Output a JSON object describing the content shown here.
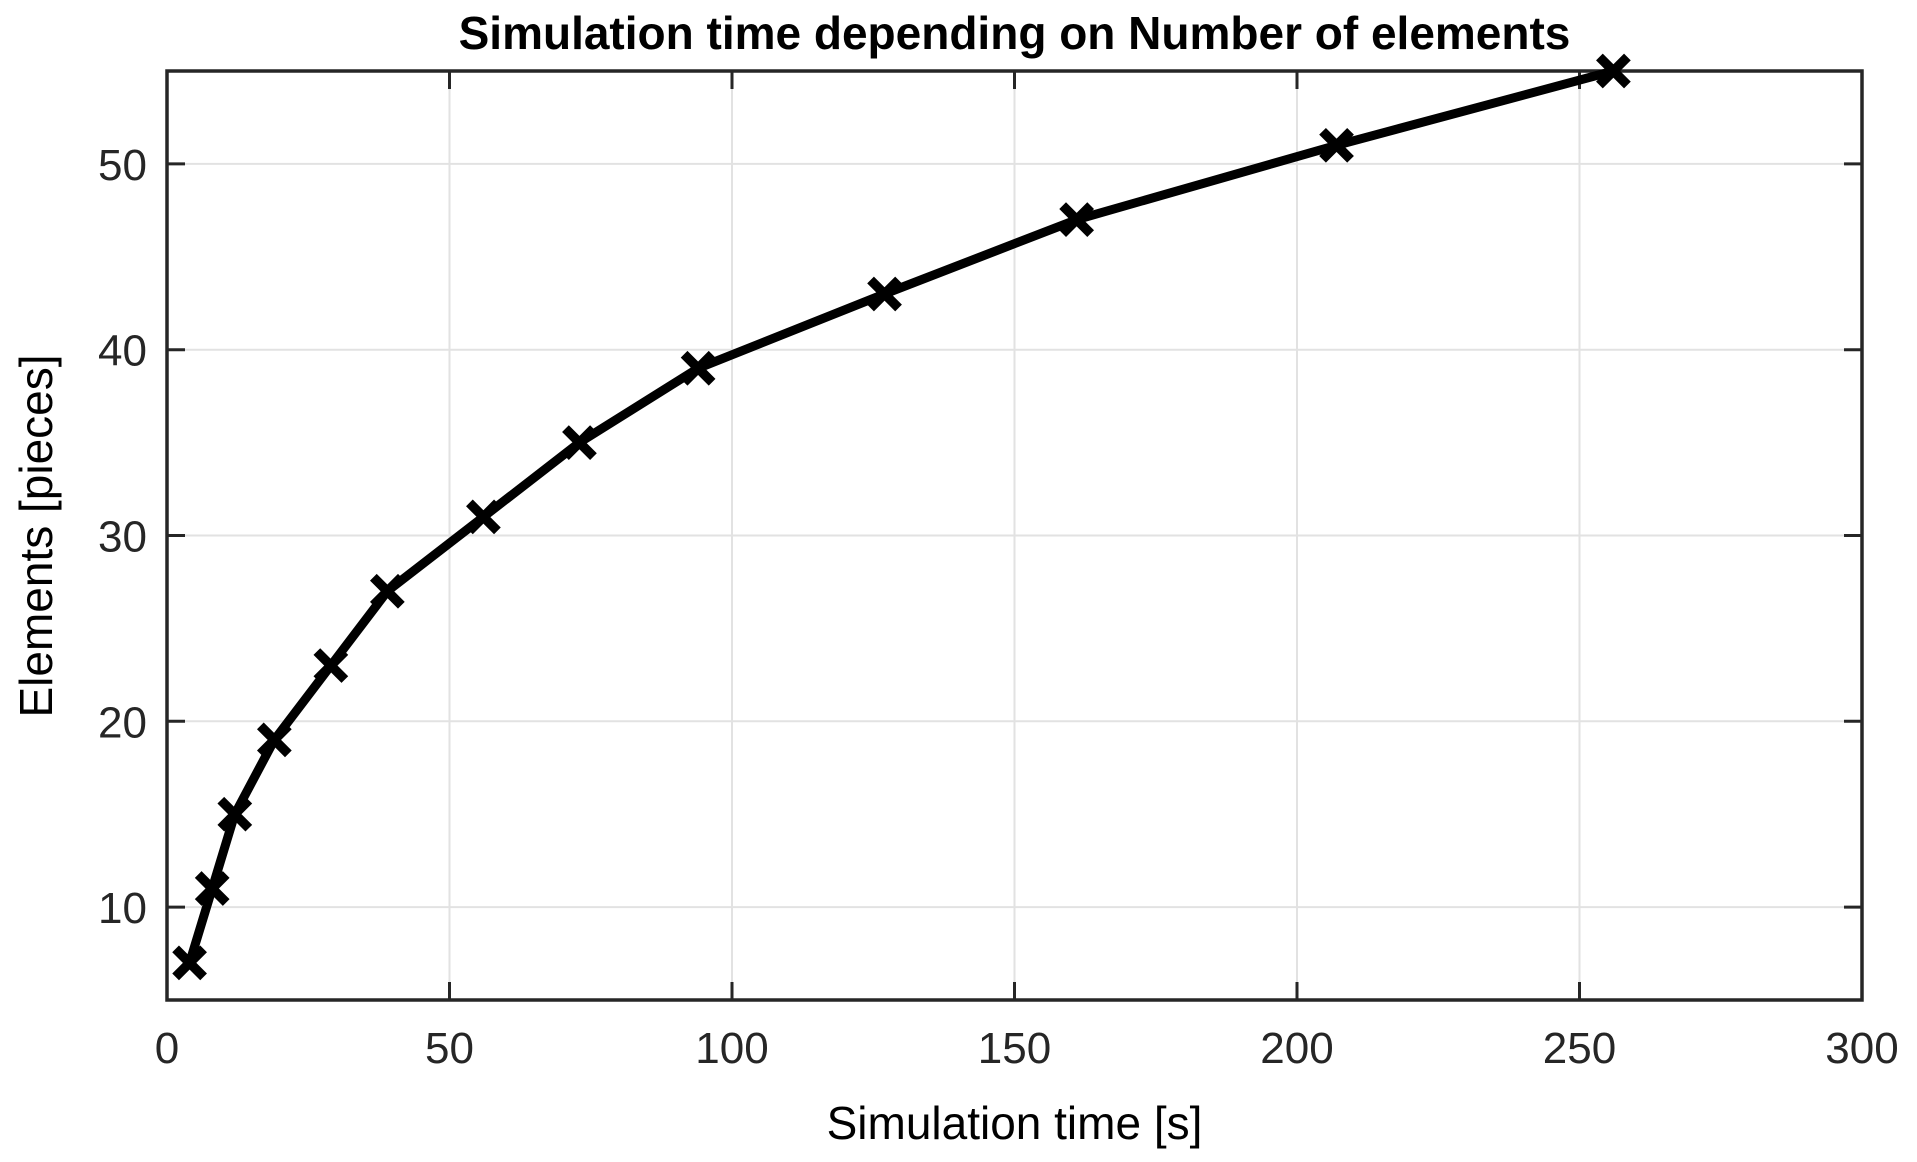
{
  "figure": {
    "background": "#ffffff"
  },
  "chart_data": {
    "type": "line",
    "title": "Simulation time depending on Number of elements",
    "xlabel": "Simulation time [s]",
    "ylabel": "Elements [pieces]",
    "x": [
      4,
      8,
      12,
      19,
      29,
      39,
      56,
      73,
      94,
      127,
      161,
      207,
      256
    ],
    "y": [
      7,
      11,
      15,
      19,
      23,
      27,
      31,
      35,
      39,
      43,
      47,
      51,
      55
    ],
    "xlim": [
      0,
      300
    ],
    "ylim": [
      5,
      55
    ],
    "xticks": [
      0,
      50,
      100,
      150,
      200,
      250,
      300
    ],
    "yticks": [
      10,
      20,
      30,
      40,
      50
    ],
    "grid": true,
    "legend": null,
    "marker": "x",
    "line_color": "#000000",
    "marker_color": "#000000",
    "grid_color": "#e2e2e2",
    "axis_color": "#262626",
    "tick_label_color": "#262626"
  }
}
